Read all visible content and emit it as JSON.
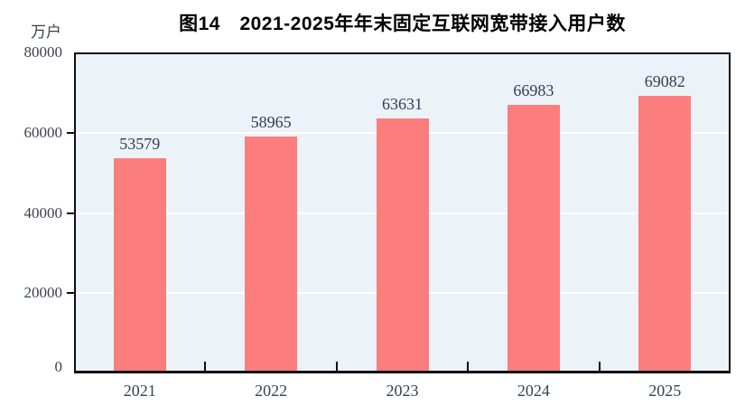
{
  "chart_data": {
    "type": "bar",
    "title": "图14　2021-2025年年末固定互联网宽带接入用户数",
    "ylabel": "万户",
    "xlabel": "",
    "categories": [
      "2021",
      "2022",
      "2023",
      "2024",
      "2025"
    ],
    "values": [
      53579,
      58965,
      63631,
      66983,
      69082
    ],
    "data_labels": [
      "53579",
      "58965",
      "63631",
      "66983",
      "69082"
    ],
    "ylim": [
      0,
      80000
    ],
    "yticks": [
      0,
      20000,
      40000,
      60000,
      80000
    ],
    "ytick_labels": [
      "0",
      "20000",
      "40000",
      "60000",
      "80000"
    ],
    "gridlines": "horizontal white lines at 20000, 40000, 60000",
    "legend": "none",
    "colors": {
      "bar_fill": "#fc7d7d",
      "plot_background": "#ecf3f8",
      "gridline": "#ffffff",
      "axis_border": "#0c0c14",
      "tick_label": "#39414f",
      "data_label": "#333c4e",
      "title": "#000000",
      "page_background": "#ffffff"
    }
  }
}
